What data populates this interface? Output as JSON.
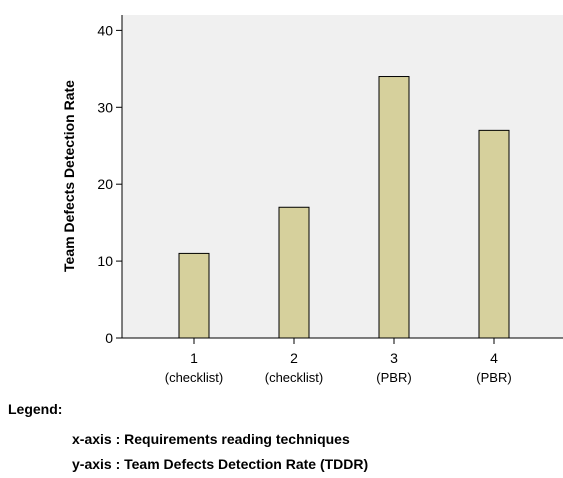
{
  "chart_data": {
    "type": "bar",
    "categories": [
      "1",
      "2",
      "3",
      "4"
    ],
    "category_sublabels": [
      "(checklist)",
      "(checklist)",
      "(PBR)",
      "(PBR)"
    ],
    "values": [
      11,
      17,
      34,
      27
    ],
    "title": "",
    "xlabel": "",
    "ylabel": "Team Defects Detection Rate",
    "ylim": [
      0,
      42
    ],
    "yticks": [
      0,
      10,
      20,
      30,
      40
    ],
    "grid": false,
    "colors": {
      "bar": "#d6d09c",
      "plot_bg": "#f0f0f0",
      "bar_stroke": "#000000"
    }
  },
  "legend": {
    "title": "Legend:",
    "x_axis": "x-axis : Requirements reading techniques",
    "y_axis": "y-axis : Team Defects Detection Rate (TDDR)"
  }
}
